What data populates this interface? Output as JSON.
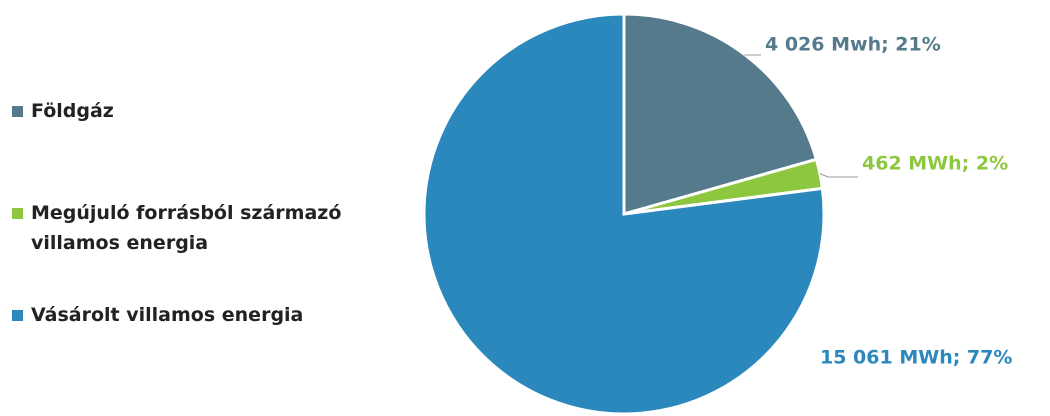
{
  "chart_data": {
    "type": "pie",
    "categories": [
      "Földgáz",
      "Megújuló forrásból származó villamos energia",
      "Vásárolt villamos energia"
    ],
    "values": [
      4026,
      462,
      15061
    ],
    "value_labels": [
      "4 026 Mwh; 21%",
      "462 MWh; 2%",
      "15 061 MWh; 77%"
    ],
    "colors": [
      "#547a8c",
      "#8dc63f",
      "#2a88bc"
    ],
    "legend": "left"
  }
}
